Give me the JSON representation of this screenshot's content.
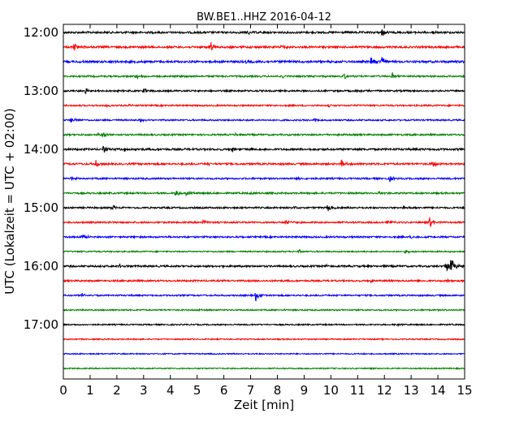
{
  "chart_data": {
    "type": "line",
    "title": "BW.BE1..HHZ 2016-04-12",
    "xlabel": "Zeit  [min]",
    "ylabel": "UTC (Lokalzeit = UTC + 02:00)",
    "xlim": [
      0,
      15
    ],
    "x_ticks": [
      "0",
      "1",
      "2",
      "3",
      "4",
      "5",
      "6",
      "7",
      "8",
      "9",
      "10",
      "11",
      "12",
      "13",
      "14",
      "15"
    ],
    "y_ticks": [
      "12:00",
      "13:00",
      "14:00",
      "15:00",
      "16:00",
      "17:00"
    ],
    "grid": false,
    "line_colors": [
      "#000000",
      "#ff0000",
      "#0000ff",
      "#008000"
    ],
    "traces": [
      {
        "start": "12:00",
        "color": "#000000",
        "noise": 1.2,
        "events": [
          [
            6.9,
            3
          ],
          [
            11.9,
            5
          ],
          [
            13.8,
            3
          ]
        ]
      },
      {
        "start": "12:15",
        "color": "#ff0000",
        "noise": 1.2,
        "events": [
          [
            0.4,
            4
          ],
          [
            5.5,
            6
          ],
          [
            6.2,
            2
          ],
          [
            8.1,
            4
          ]
        ]
      },
      {
        "start": "12:30",
        "color": "#0000ff",
        "noise": 1.3,
        "events": [
          [
            11.5,
            6
          ],
          [
            11.9,
            8
          ],
          [
            6.8,
            2
          ]
        ]
      },
      {
        "start": "12:45",
        "color": "#008000",
        "noise": 1.0,
        "events": [
          [
            2.7,
            3
          ],
          [
            4.4,
            2
          ],
          [
            8.2,
            2
          ],
          [
            10.5,
            4
          ],
          [
            12.3,
            4
          ]
        ]
      },
      {
        "start": "13:00",
        "color": "#000000",
        "noise": 1.0,
        "events": [
          [
            0.8,
            5
          ],
          [
            3.0,
            5
          ],
          [
            10.9,
            3
          ],
          [
            11.3,
            2
          ]
        ]
      },
      {
        "start": "13:15",
        "color": "#ff0000",
        "noise": 0.9,
        "events": [
          [
            1.6,
            2
          ],
          [
            2.4,
            2
          ],
          [
            9.9,
            2
          ]
        ]
      },
      {
        "start": "13:30",
        "color": "#0000ff",
        "noise": 0.9,
        "events": [
          [
            0.3,
            3
          ],
          [
            9.4,
            3
          ],
          [
            2.9,
            2
          ]
        ]
      },
      {
        "start": "13:45",
        "color": "#008000",
        "noise": 1.0,
        "events": [
          [
            1.5,
            5
          ],
          [
            1.3,
            2
          ],
          [
            6.4,
            2
          ]
        ]
      },
      {
        "start": "14:00",
        "color": "#000000",
        "noise": 1.2,
        "events": [
          [
            1.5,
            4
          ],
          [
            2.3,
            3
          ],
          [
            6.3,
            4
          ],
          [
            7.0,
            2
          ]
        ]
      },
      {
        "start": "14:15",
        "color": "#ff0000",
        "noise": 1.1,
        "events": [
          [
            1.2,
            5
          ],
          [
            10.4,
            5
          ],
          [
            13.8,
            4
          ],
          [
            5.4,
            2
          ]
        ]
      },
      {
        "start": "14:30",
        "color": "#0000ff",
        "noise": 1.0,
        "events": [
          [
            0.3,
            2
          ],
          [
            12.2,
            4
          ],
          [
            8.8,
            2
          ]
        ]
      },
      {
        "start": "14:45",
        "color": "#008000",
        "noise": 1.0,
        "events": [
          [
            4.2,
            5
          ],
          [
            4.6,
            5
          ],
          [
            7.0,
            2
          ],
          [
            11.8,
            2
          ]
        ]
      },
      {
        "start": "15:00",
        "color": "#000000",
        "noise": 1.0,
        "events": [
          [
            1.8,
            6
          ],
          [
            9.9,
            5
          ],
          [
            12.7,
            3
          ],
          [
            8.6,
            2
          ]
        ]
      },
      {
        "start": "15:15",
        "color": "#ff0000",
        "noise": 1.0,
        "events": [
          [
            5.2,
            4
          ],
          [
            8.3,
            4
          ],
          [
            13.7,
            7
          ],
          [
            12.1,
            2
          ]
        ]
      },
      {
        "start": "15:30",
        "color": "#0000ff",
        "noise": 1.0,
        "events": [
          [
            0.7,
            5
          ],
          [
            6.7,
            2
          ],
          [
            13.0,
            2
          ]
        ]
      },
      {
        "start": "15:45",
        "color": "#008000",
        "noise": 0.8,
        "events": [
          [
            12.8,
            2
          ],
          [
            8.8,
            2
          ]
        ]
      },
      {
        "start": "16:00",
        "color": "#000000",
        "noise": 1.1,
        "events": [
          [
            14.3,
            9
          ],
          [
            14.5,
            12
          ],
          [
            2.1,
            2
          ],
          [
            9.8,
            2
          ]
        ]
      },
      {
        "start": "16:15",
        "color": "#ff0000",
        "noise": 1.0,
        "events": [
          [
            11.5,
            2
          ],
          [
            14.4,
            2
          ]
        ]
      },
      {
        "start": "16:30",
        "color": "#0000ff",
        "noise": 0.9,
        "events": [
          [
            0.7,
            4
          ],
          [
            7.2,
            8
          ]
        ]
      },
      {
        "start": "16:45",
        "color": "#008000",
        "noise": 0.8,
        "events": [
          [
            5.0,
            1
          ]
        ]
      },
      {
        "start": "17:00",
        "color": "#000000",
        "noise": 0.8,
        "events": [
          [
            12.5,
            1
          ]
        ]
      },
      {
        "start": "17:15",
        "color": "#ff0000",
        "noise": 0.7,
        "events": []
      },
      {
        "start": "17:30",
        "color": "#0000ff",
        "noise": 0.7,
        "events": []
      },
      {
        "start": "17:45",
        "color": "#008000",
        "noise": 0.7,
        "events": []
      }
    ]
  }
}
